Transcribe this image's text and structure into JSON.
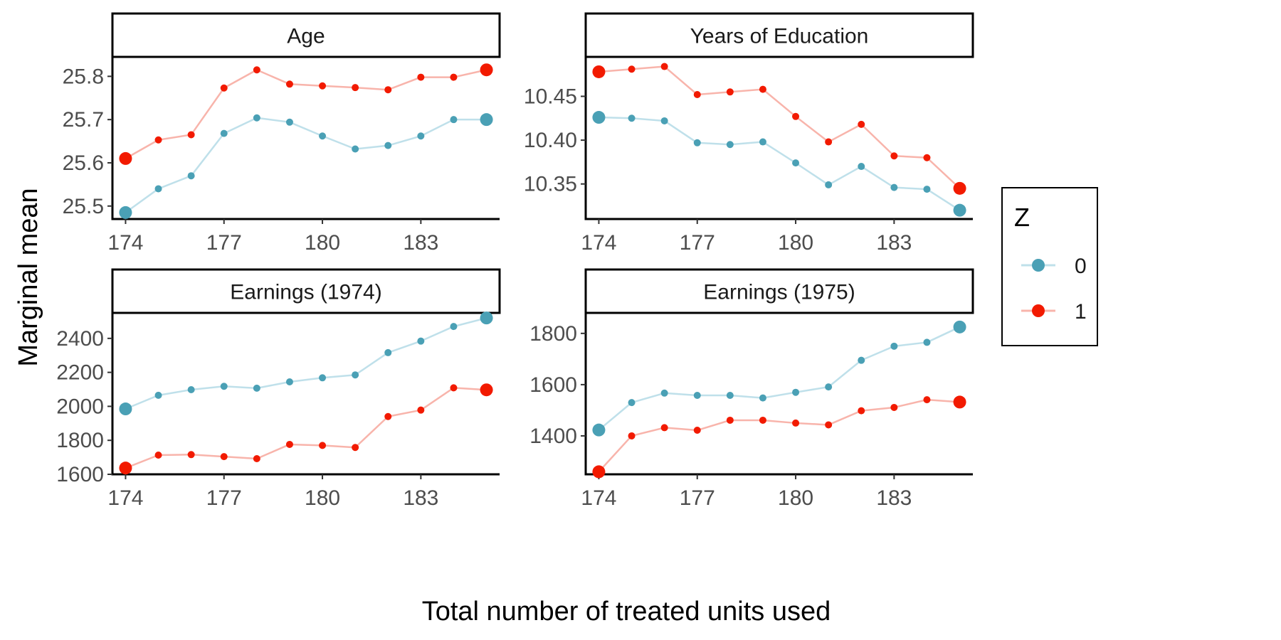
{
  "chart_data": {
    "type": "line",
    "xlabel": "Total number of treated units used",
    "ylabel": "Marginal mean",
    "x": [
      174,
      175,
      176,
      177,
      178,
      179,
      180,
      181,
      182,
      183,
      184,
      185
    ],
    "xticks": [
      174,
      177,
      180,
      183
    ],
    "legend": {
      "title": "Z",
      "position": "right",
      "entries": [
        {
          "label": "0",
          "color": "#4aa0b5"
        },
        {
          "label": "1",
          "color": "#f21a00"
        }
      ]
    },
    "colors": {
      "0": {
        "point": "#4aa0b5",
        "line": "#bfe0ea"
      },
      "1": {
        "point": "#f21a00",
        "line": "#f8b4ab"
      }
    },
    "panels": [
      {
        "title": "Age",
        "ylim": [
          25.47,
          25.845
        ],
        "yticks": [
          25.5,
          25.6,
          25.7,
          25.8
        ],
        "ytick_labels": [
          "25.5",
          "25.6",
          "25.7",
          "25.8"
        ],
        "series": [
          {
            "name": "0",
            "values": [
              25.485,
              25.54,
              25.57,
              25.668,
              25.704,
              25.694,
              25.662,
              25.632,
              25.64,
              25.662,
              25.7,
              25.7
            ]
          },
          {
            "name": "1",
            "values": [
              25.61,
              25.653,
              25.665,
              25.773,
              25.815,
              25.782,
              25.778,
              25.774,
              25.769,
              25.798,
              25.798,
              25.815
            ]
          }
        ]
      },
      {
        "title": "Years of Education",
        "ylim": [
          10.31,
          10.495
        ],
        "yticks": [
          10.35,
          10.4,
          10.45
        ],
        "ytick_labels": [
          "10.35",
          "10.40",
          "10.45"
        ],
        "series": [
          {
            "name": "0",
            "values": [
              10.426,
              10.425,
              10.422,
              10.397,
              10.395,
              10.398,
              10.374,
              10.349,
              10.37,
              10.346,
              10.344,
              10.32
            ]
          },
          {
            "name": "1",
            "values": [
              10.478,
              10.481,
              10.484,
              10.452,
              10.455,
              10.458,
              10.427,
              10.398,
              10.418,
              10.382,
              10.38,
              10.345
            ]
          }
        ]
      },
      {
        "title": "Earnings (1974)",
        "ylim": [
          1600,
          2550
        ],
        "yticks": [
          1600,
          1800,
          2000,
          2200,
          2400
        ],
        "ytick_labels": [
          "1600",
          "1800",
          "2000",
          "2200",
          "2400"
        ],
        "series": [
          {
            "name": "0",
            "values": [
              1985,
              2065,
              2098,
              2118,
              2107,
              2144,
              2168,
              2185,
              2316,
              2384,
              2470,
              2520
            ]
          },
          {
            "name": "1",
            "values": [
              1637,
              1713,
              1716,
              1704,
              1692,
              1776,
              1770,
              1758,
              1940,
              1978,
              2109,
              2097
            ]
          }
        ]
      },
      {
        "title": "Earnings (1975)",
        "ylim": [
          1250,
          1880
        ],
        "yticks": [
          1400,
          1600,
          1800
        ],
        "ytick_labels": [
          "1400",
          "1600",
          "1800"
        ],
        "series": [
          {
            "name": "0",
            "values": [
              1423,
              1530,
              1567,
              1558,
              1558,
              1548,
              1570,
              1591,
              1695,
              1750,
              1765,
              1825
            ]
          },
          {
            "name": "1",
            "values": [
              1260,
              1400,
              1432,
              1422,
              1461,
              1461,
              1450,
              1443,
              1498,
              1511,
              1541,
              1532
            ]
          }
        ]
      }
    ]
  }
}
